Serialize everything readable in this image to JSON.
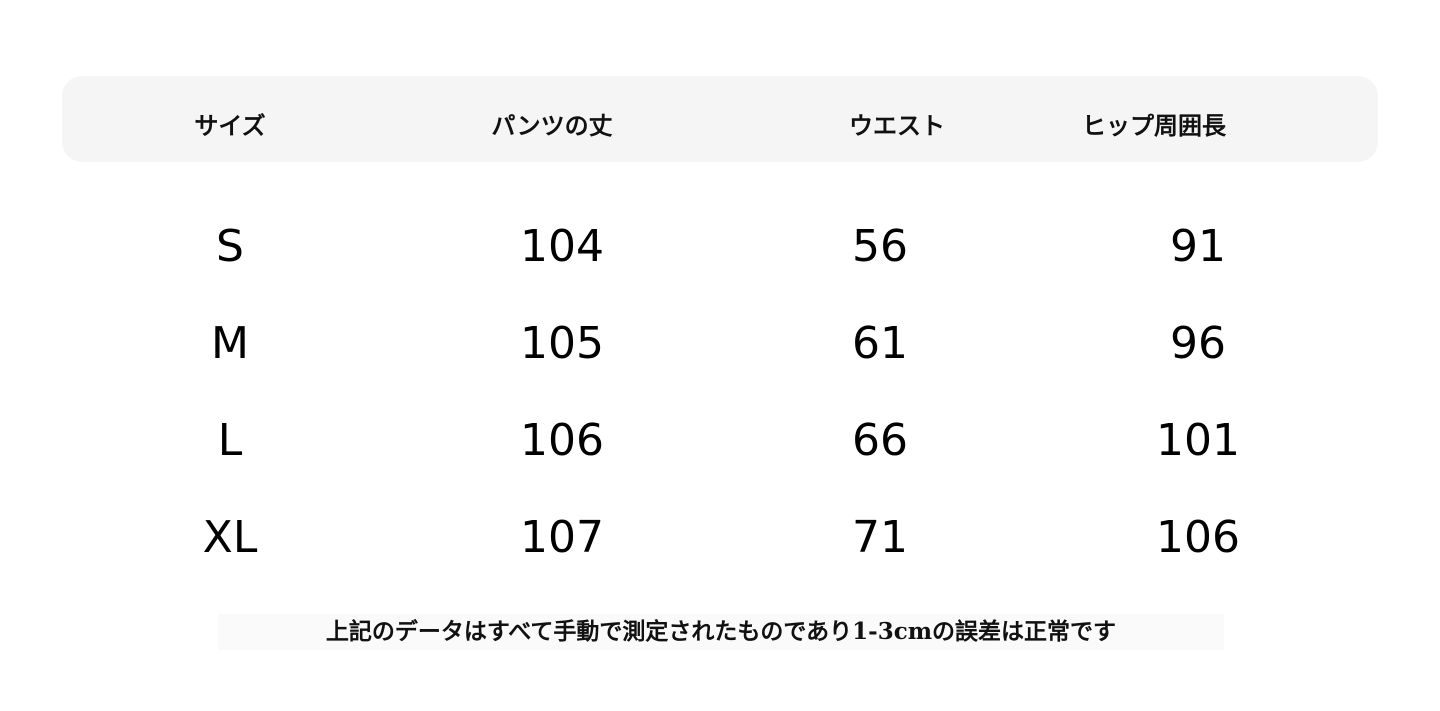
{
  "table": {
    "headers": [
      "サイズ",
      "パンツの丈",
      "ウエスト",
      "ヒップ周囲長"
    ],
    "rows": [
      [
        "S",
        "104",
        "56",
        "91"
      ],
      [
        "M",
        "105",
        "61",
        "96"
      ],
      [
        "L",
        "106",
        "66",
        "101"
      ],
      [
        "XL",
        "107",
        "71",
        "106"
      ]
    ]
  },
  "footer": "上記のデータはすべて手動で測定されたものであり1-3cmの誤差は正常です"
}
